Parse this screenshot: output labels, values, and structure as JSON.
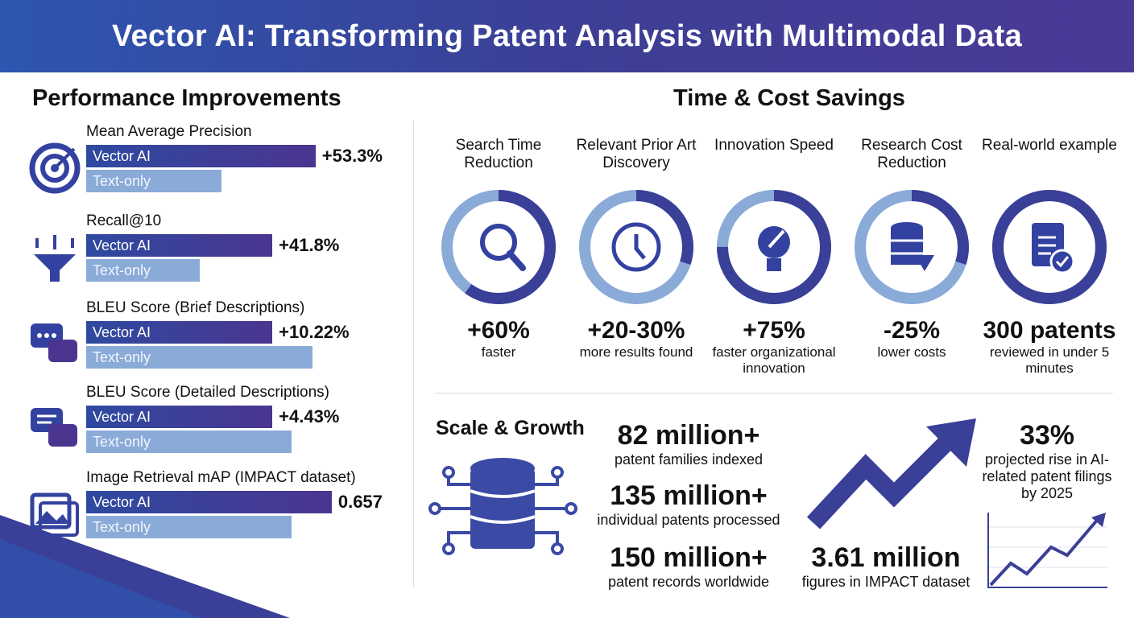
{
  "title": "Vector AI: Transforming Patent Analysis with Multimodal Data",
  "performance": {
    "heading": "Performance Improvements",
    "series_labels": {
      "vector": "Vector AI",
      "text": "Text-only"
    },
    "metrics": [
      {
        "label": "Mean Average Precision",
        "value": "+53.3%",
        "icon": "target-icon",
        "vector_fill": 0.85,
        "text_fill": 0.5
      },
      {
        "label": "Recall@10",
        "value": "+41.8%",
        "icon": "funnel-icon",
        "vector_fill": 0.69,
        "text_fill": 0.42
      },
      {
        "label": "BLEU Score (Brief Descriptions)",
        "value": "+10.22%",
        "icon": "chat-bubbles-icon",
        "vector_fill": 0.69,
        "text_fill": 0.84
      },
      {
        "label": "BLEU Score (Detailed Descriptions)",
        "value": "+4.43%",
        "icon": "message-icon",
        "vector_fill": 0.69,
        "text_fill": 0.76
      },
      {
        "label": "Image Retrieval mAP (IMPACT dataset)",
        "value": "0.657",
        "icon": "image-icon",
        "vector_fill": 0.91,
        "text_fill": 0.76
      }
    ]
  },
  "savings": {
    "heading": "Time & Cost Savings",
    "cards": [
      {
        "title": "Search Time Reduction",
        "value": "+60%",
        "sub": "faster",
        "icon": "magnifier-icon",
        "fill": 0.6
      },
      {
        "title": "Relevant Prior Art Discovery",
        "value": "+20-30%",
        "sub": "more results found",
        "icon": "clock-icon",
        "fill": 0.3
      },
      {
        "title": "Innovation Speed",
        "value": "+75%",
        "sub": "faster organizational innovation",
        "icon": "lightbulb-rocket-icon",
        "fill": 0.75
      },
      {
        "title": "Research Cost Reduction",
        "value": "-25%",
        "sub": "lower costs",
        "icon": "database-down-icon",
        "fill": 0.3
      },
      {
        "title": "Real-world example",
        "value": "300 patents",
        "sub": "reviewed in under 5 minutes",
        "icon": "document-check-icon",
        "fill": 1.0
      }
    ]
  },
  "scale": {
    "heading": "Scale & Growth",
    "stats": [
      {
        "value": "82 million+",
        "desc": "patent families indexed"
      },
      {
        "value": "135 million+",
        "desc": "individual patents processed"
      },
      {
        "value": "150 million+",
        "desc": "patent records worldwide"
      },
      {
        "value": "3.61 million",
        "desc": "figures in IMPACT dataset"
      },
      {
        "value": "33%",
        "desc": "projected rise in AI-related patent filings by 2025"
      }
    ]
  },
  "colors": {
    "dark": "#2f3f9a",
    "light": "#8aaad8",
    "banner": "#3c3f95"
  }
}
